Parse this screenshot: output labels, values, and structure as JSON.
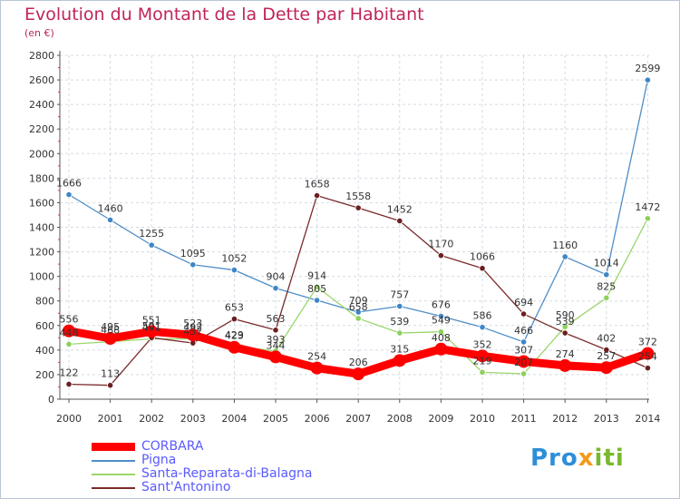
{
  "page": {
    "title": "Evolution du Montant de la Dette par Habitant",
    "subtitle": "(en €)"
  },
  "logo": {
    "part1": "Pro",
    "part2": "x",
    "part3": "iti"
  },
  "chart_data": {
    "type": "line",
    "title": "Evolution du Montant de la Dette par Habitant",
    "ylabel": "(en €)",
    "xlabel": "",
    "ylim": [
      0,
      2800
    ],
    "yticks": [
      0,
      200,
      400,
      600,
      800,
      1000,
      1200,
      1400,
      1600,
      1800,
      2000,
      2200,
      2400,
      2600,
      2800
    ],
    "categories": [
      "2000",
      "2001",
      "2002",
      "2003",
      "2004",
      "2005",
      "2006",
      "2007",
      "2008",
      "2009",
      "2010",
      "2011",
      "2012",
      "2013",
      "2014"
    ],
    "grid": true,
    "series": [
      {
        "name": "Pigna",
        "color": "#4f8ec8",
        "point_color": "#3d86c6",
        "values": [
          1666,
          1460,
          1255,
          1095,
          1052,
          904,
          805,
          709,
          757,
          676,
          586,
          466,
          1160,
          1014,
          2599
        ],
        "labels": [
          "1666",
          "1460",
          "1255",
          "1095",
          "1052",
          "904",
          "805",
          "709",
          "757",
          "676",
          "586",
          "466",
          "1160",
          "1014",
          "2599"
        ]
      },
      {
        "name": "Santa-Reparata-di-Balagna",
        "color": "#9bd66b",
        "point_color": "#8ed15a",
        "values": [
          448,
          468,
          491,
          492,
          429,
          393,
          914,
          658,
          539,
          549,
          219,
          207,
          590,
          825,
          1472
        ],
        "labels": [
          "448",
          "468",
          "491",
          "492",
          "429",
          "393",
          "914",
          "658",
          "539",
          "549",
          "219",
          "207",
          "590",
          "825",
          "1472"
        ]
      },
      {
        "name": "Sant'Antonino",
        "color": "#7a2a2a",
        "point_color": "#6b1f1f",
        "values": [
          122,
          113,
          501,
          457,
          653,
          563,
          1658,
          1558,
          1452,
          1170,
          1066,
          694,
          539,
          402,
          254
        ],
        "labels": [
          "122",
          "113",
          "501",
          "457",
          "653",
          "563",
          "1658",
          "1558",
          "1452",
          "1170",
          "1066",
          "694",
          "539",
          "402",
          "254"
        ]
      },
      {
        "name": "CORBARA",
        "color": "#ff0000",
        "point_color": "#ff0000",
        "values": [
          556,
          495,
          551,
          523,
          423,
          344,
          254,
          206,
          315,
          408,
          352,
          307,
          274,
          257,
          372
        ],
        "labels": [
          "556",
          "495",
          "551",
          "523",
          "423",
          "344",
          "254",
          "206",
          "315",
          "408",
          "352",
          "307",
          "274",
          "257",
          "372"
        ]
      }
    ],
    "legend": [
      "CORBARA",
      "Pigna",
      "Santa-Reparata-di-Balagna",
      "Sant'Antonino"
    ]
  }
}
